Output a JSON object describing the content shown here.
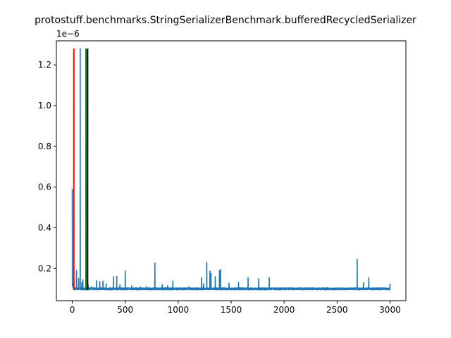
{
  "chart_data": {
    "type": "line",
    "title": "protostuff.benchmarks.StringSerializerBenchmark.bufferedRecycledSerializer",
    "xlabel": "",
    "ylabel": "",
    "y_offset_label": "1e−6",
    "xlim": [
      -150,
      3150
    ],
    "ylim": [
      4.2e-08,
      1.318e-06
    ],
    "x_ticks": [
      0,
      500,
      1000,
      1500,
      2000,
      2500,
      3000
    ],
    "x_tick_labels": [
      "0",
      "500",
      "1000",
      "1500",
      "2000",
      "2500",
      "3000"
    ],
    "y_ticks": [
      2e-07,
      4e-07,
      6e-07,
      8e-07,
      1e-06,
      1.2e-06
    ],
    "y_tick_labels": [
      "0.2",
      "0.4",
      "0.6",
      "0.8",
      "1.0",
      "1.2"
    ],
    "grid": false,
    "baseline": 1e-07,
    "series": [
      {
        "color": "#1f77b4",
        "x_end": 3000,
        "spikes": [
          [
            0,
            5.9e-07
          ],
          [
            5,
            1.3e-07
          ],
          [
            40,
            1.9e-07
          ],
          [
            60,
            1.5e-07
          ],
          [
            75,
            1.28e-06
          ],
          [
            90,
            1.3e-07
          ],
          [
            100,
            1.45e-07
          ],
          [
            130,
            7.9e-07
          ],
          [
            150,
            1.2e-07
          ],
          [
            180,
            1.1e-07
          ],
          [
            230,
            1.4e-07
          ],
          [
            260,
            1.35e-07
          ],
          [
            290,
            1.38e-07
          ],
          [
            320,
            1.25e-07
          ],
          [
            390,
            1.6e-07
          ],
          [
            420,
            1.62e-07
          ],
          [
            450,
            1.2e-07
          ],
          [
            500,
            1.88e-07
          ],
          [
            560,
            1.15e-07
          ],
          [
            640,
            1.1e-07
          ],
          [
            700,
            1.12e-07
          ],
          [
            780,
            2.28e-07
          ],
          [
            850,
            1.22e-07
          ],
          [
            900,
            1.15e-07
          ],
          [
            950,
            1.38e-07
          ],
          [
            1100,
            1.1e-07
          ],
          [
            1220,
            1.55e-07
          ],
          [
            1240,
            1.25e-07
          ],
          [
            1270,
            2.3e-07
          ],
          [
            1300,
            1.88e-07
          ],
          [
            1310,
            1.75e-07
          ],
          [
            1350,
            1.6e-07
          ],
          [
            1390,
            1.9e-07
          ],
          [
            1400,
            1.95e-07
          ],
          [
            1480,
            1.28e-07
          ],
          [
            1570,
            1.32e-07
          ],
          [
            1660,
            1.55e-07
          ],
          [
            1760,
            1.5e-07
          ],
          [
            1860,
            1.55e-07
          ],
          [
            2000,
            1.05e-07
          ],
          [
            2200,
            1.05e-07
          ],
          [
            2400,
            1.05e-07
          ],
          [
            2690,
            2.45e-07
          ],
          [
            2750,
            1.3e-07
          ],
          [
            2800,
            1.55e-07
          ],
          [
            3000,
            1.25e-07
          ]
        ]
      }
    ],
    "vlines": [
      {
        "x": 15,
        "color": "#ff0000"
      },
      {
        "x": 130,
        "color": "#008000"
      },
      {
        "x": 145,
        "color": "#000000"
      }
    ],
    "vline_range": [
      9.5e-08,
      1.28e-06
    ]
  }
}
